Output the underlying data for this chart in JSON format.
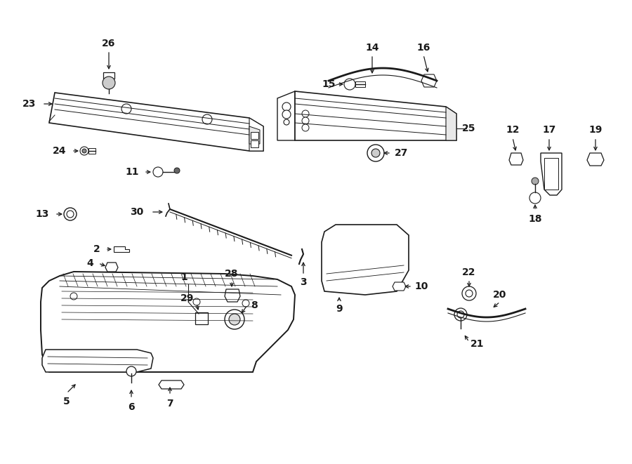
{
  "background": "#ffffff",
  "lc": "#1a1a1a",
  "tc": "#1a1a1a",
  "lw": 1.0,
  "fontsize": 10
}
